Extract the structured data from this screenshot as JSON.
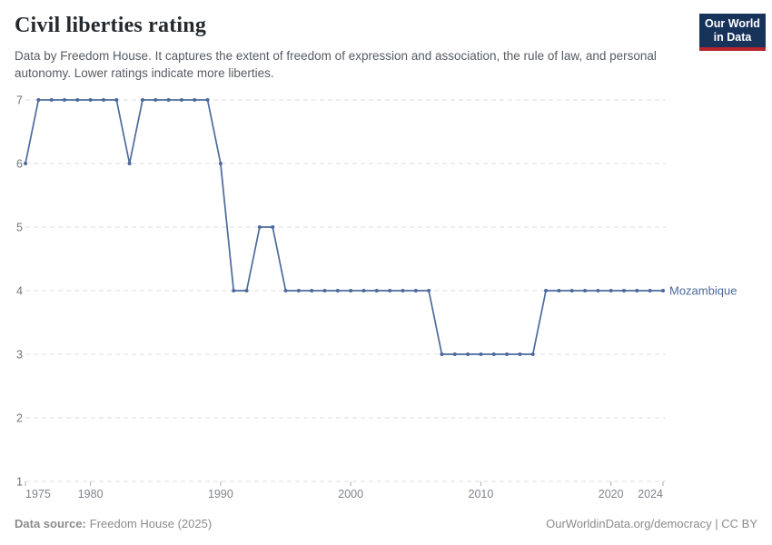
{
  "header": {
    "title": "Civil liberties rating",
    "subtitle": "Data by Freedom House. It captures the extent of freedom of expression and association, the rule of law, and personal autonomy. Lower ratings indicate more liberties.",
    "logo": {
      "line1": "Our World",
      "line2": "in Data",
      "bg_color": "#18335a",
      "bar_color": "#b5232d"
    }
  },
  "chart_data": {
    "type": "line",
    "title": "Civil liberties rating",
    "xlabel": "",
    "ylabel": "",
    "xlim": [
      1975,
      2024
    ],
    "ylim": [
      1,
      7
    ],
    "x_ticks": [
      1975,
      1980,
      1990,
      2000,
      2010,
      2020,
      2024
    ],
    "y_ticks": [
      1,
      2,
      3,
      4,
      5,
      6,
      7
    ],
    "grid": "horizontal-dashed",
    "legend_position": "end-of-line-label",
    "series": [
      {
        "name": "Mozambique",
        "color": "#4C6A9C",
        "years": [
          1975,
          1976,
          1977,
          1978,
          1979,
          1980,
          1981,
          1982,
          1983,
          1984,
          1985,
          1986,
          1987,
          1988,
          1989,
          1990,
          1991,
          1992,
          1993,
          1994,
          1995,
          1996,
          1997,
          1998,
          1999,
          2000,
          2001,
          2002,
          2003,
          2004,
          2005,
          2006,
          2007,
          2008,
          2009,
          2010,
          2011,
          2012,
          2013,
          2014,
          2015,
          2016,
          2017,
          2018,
          2019,
          2020,
          2021,
          2022,
          2023,
          2024
        ],
        "values": [
          6,
          7,
          7,
          7,
          7,
          7,
          7,
          7,
          6,
          7,
          7,
          7,
          7,
          7,
          7,
          6,
          4,
          4,
          5,
          5,
          4,
          4,
          4,
          4,
          4,
          4,
          4,
          4,
          4,
          4,
          4,
          4,
          3,
          3,
          3,
          3,
          3,
          3,
          3,
          3,
          4,
          4,
          4,
          4,
          4,
          4,
          4,
          4,
          4,
          4
        ]
      }
    ]
  },
  "footer": {
    "source_label": "Data source:",
    "source_value": "Freedom House (2025)",
    "attribution": "OurWorldinData.org/democracy | CC BY"
  }
}
